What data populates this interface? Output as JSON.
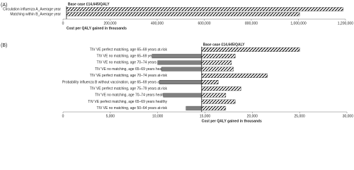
{
  "chart_data": [
    {
      "type": "tornado",
      "panel_label": "(A)",
      "title": "Base case £14,645/QALY",
      "base_value": 14645,
      "categories": [
        "Circulation influenza A_Average year",
        "Matching within B_Average year"
      ],
      "series": [
        {
          "color": "#000000",
          "values": [
            1190000,
            1005000
          ]
        }
      ],
      "xlim": [
        0,
        1200000
      ],
      "xticks": [
        0,
        {
          "value": 200000,
          "label": "200,000"
        },
        {
          "value": 400000,
          "label": "400,000"
        },
        {
          "value": 600000,
          "label": "600,000"
        },
        {
          "value": 800000,
          "label": "800,000"
        },
        {
          "value": 1000000,
          "label": "1,000,000"
        },
        {
          "value": 1200000,
          "label": "1,200,000"
        }
      ],
      "x_label": "Cost per QALY gained in thousands"
    },
    {
      "type": "tornado",
      "panel_label": "(B)",
      "title": "Base case £14,645/QALY",
      "base_value": 14645,
      "categories": [
        "TIV VE perfect matching, age 65–69 years at-risk",
        "TIV VE no matching, age 65–69 years at-risk",
        "TIV VE no matching, age 70–74 years at-risk",
        "TIV VE no matching, age 65–69 years healthy",
        "TIV VE perfect matching, age 70–74 years at-risk",
        "Probability influenza B without vaccination, age 65–69 years at-risk",
        "TIV VE perfect matching, age 75–79 years at-risk",
        "TIV VE no matching, age 70–74 years healthy",
        "TIV VE perfect matching, age 65–69 years healthy",
        "TIV VE no matching, age 50–64 years at-risk"
      ],
      "series": [
        {
          "color": "#808080",
          "values": [
            null,
            9400,
            10000,
            10400,
            null,
            10200,
            null,
            10600,
            null,
            13000
          ]
        },
        {
          "color": "#000000",
          "values": [
            25000,
            18200,
            17800,
            18000,
            21600,
            16400,
            18800,
            17200,
            18200,
            17200
          ]
        }
      ],
      "xlim": [
        0,
        30000
      ],
      "xticks": [
        0,
        {
          "value": 5000,
          "label": "5,000"
        },
        {
          "value": 10000,
          "label": "10,000"
        },
        {
          "value": 15000,
          "label": "15,000"
        },
        {
          "value": 20000,
          "label": "20,000"
        },
        {
          "value": 25000,
          "label": "25,000"
        },
        {
          "value": 30000,
          "label": "30,000"
        }
      ],
      "x_label": "Cost per QALY gained in thousands"
    }
  ]
}
